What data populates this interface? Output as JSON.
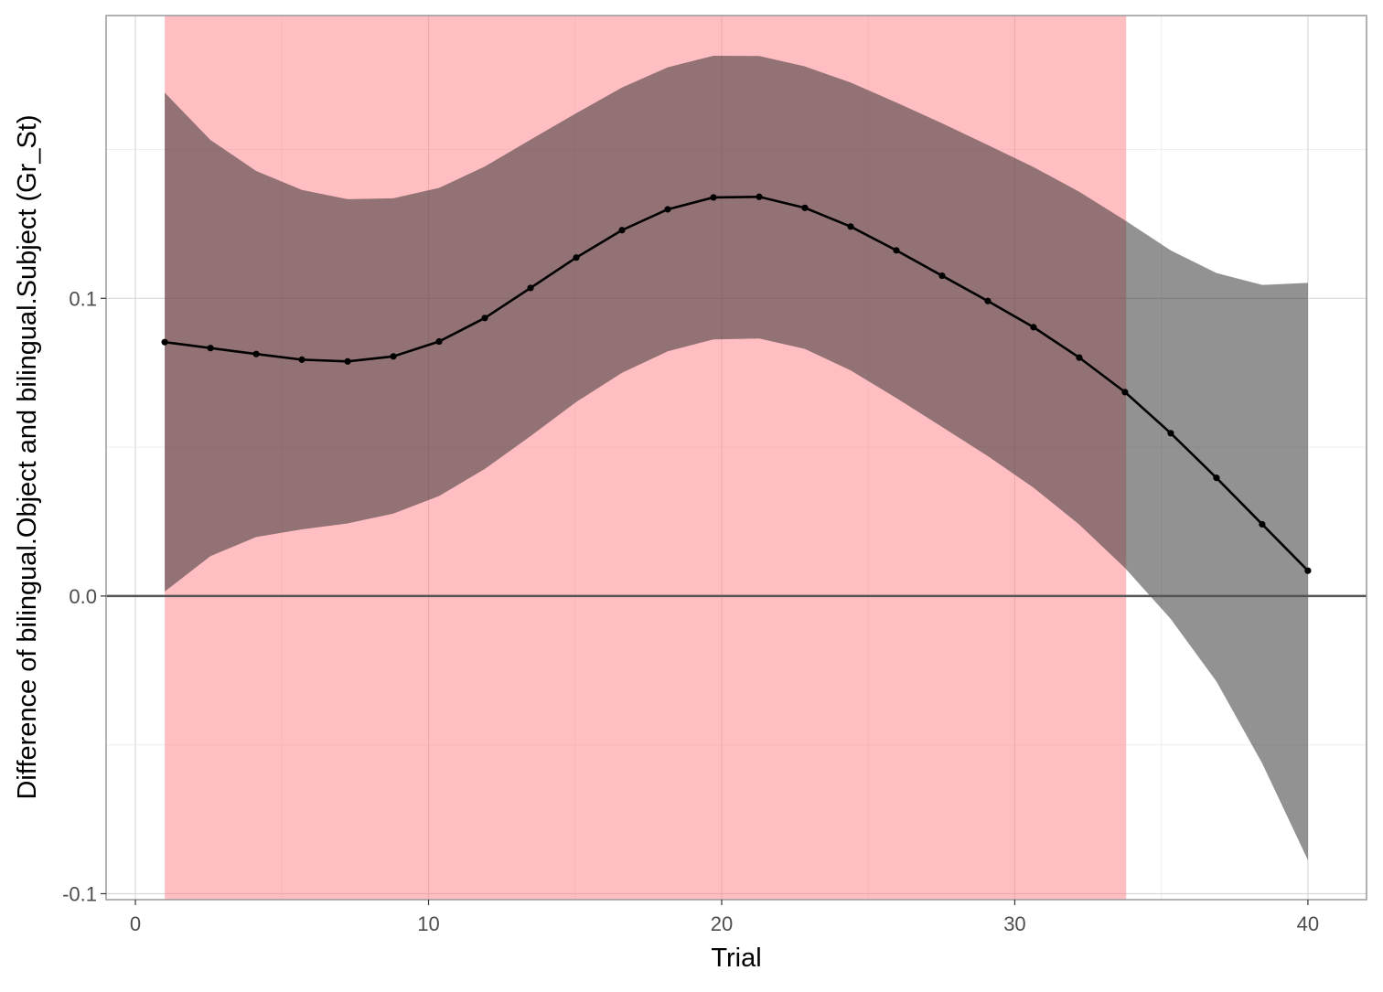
{
  "chart_data": {
    "type": "line",
    "title": "",
    "xlabel": "Trial",
    "ylabel": "Difference of bilingual.Object and bilingual.Subject (Gr_St)",
    "xlim": [
      -1,
      42
    ],
    "ylim": [
      -0.102,
      0.195
    ],
    "x_ticks": [
      0,
      10,
      20,
      30,
      40
    ],
    "x_tick_labels": [
      "0",
      "10",
      "20",
      "30",
      "40"
    ],
    "y_ticks": [
      -0.1,
      0.0,
      0.1
    ],
    "y_tick_labels": [
      "-0.1",
      "0.0",
      "0.1"
    ],
    "grid": true,
    "reference_line_y": 0,
    "significant_region": {
      "x_start": 1,
      "x_end": 33.8,
      "color": "#ff7f85"
    },
    "colors": {
      "panel_border": "#999999",
      "grid_major": "#d9d9d9",
      "grid_minor": "#eeeeee",
      "line": "#000000",
      "ribbon": "#262626",
      "zero_line": "#555555"
    },
    "series": [
      {
        "x": [
          1,
          2.56,
          4.12,
          5.68,
          7.24,
          8.8,
          10.36,
          11.92,
          13.48,
          15.04,
          16.6,
          18.16,
          19.72,
          21.28,
          22.84,
          24.4,
          25.96,
          27.52,
          29.08,
          30.64,
          32.2,
          33.76,
          35.32,
          36.88,
          38.44,
          40
        ],
        "y": [
          0.0853,
          0.0833,
          0.0813,
          0.0794,
          0.0788,
          0.0805,
          0.0855,
          0.0934,
          0.1035,
          0.1137,
          0.1229,
          0.1299,
          0.1339,
          0.1341,
          0.1304,
          0.1241,
          0.1161,
          0.1076,
          0.0991,
          0.0903,
          0.0801,
          0.0685,
          0.0547,
          0.0397,
          0.0241,
          0.0085
        ],
        "lower": [
          0.0015,
          0.0134,
          0.0198,
          0.0224,
          0.0244,
          0.0277,
          0.0336,
          0.0427,
          0.0537,
          0.0652,
          0.075,
          0.0822,
          0.0862,
          0.0865,
          0.083,
          0.0758,
          0.0665,
          0.0568,
          0.047,
          0.0364,
          0.024,
          0.0094,
          -0.0077,
          -0.0287,
          -0.0562,
          -0.0887
        ],
        "upper": [
          0.1691,
          0.1532,
          0.1428,
          0.1364,
          0.1333,
          0.1336,
          0.1371,
          0.1443,
          0.1533,
          0.1622,
          0.1708,
          0.1776,
          0.1815,
          0.1814,
          0.1779,
          0.1725,
          0.1658,
          0.1588,
          0.1515,
          0.1441,
          0.1358,
          0.1262,
          0.1161,
          0.1085,
          0.1045,
          0.1052
        ]
      }
    ]
  }
}
